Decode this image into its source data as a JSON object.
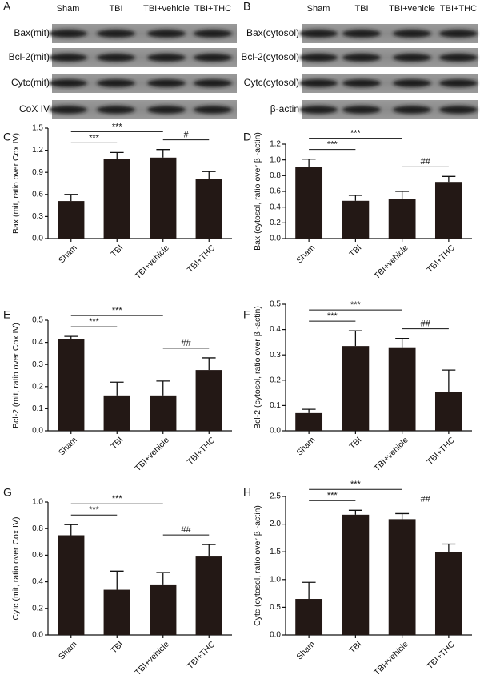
{
  "blots": [
    {
      "label": "A",
      "columns": [
        "Sham",
        "TBI",
        "TBI+vehicle",
        "TBI+THC"
      ],
      "rows": [
        "Bax(mit)",
        "Bcl-2(mit)",
        "Cytc(mit)",
        "CoX IV"
      ]
    },
    {
      "label": "B",
      "columns": [
        "Sham",
        "TBI",
        "TBI+vehicle",
        "TBI+THC"
      ],
      "rows": [
        "Bax(cytosol)",
        "Bcl-2(cytosol)",
        "Cytc(cytosol)",
        "β-actin"
      ]
    }
  ],
  "chart_data": [
    {
      "type": "bar",
      "label": "C",
      "y_label": "Bax (mit, ratio over Cox IV)",
      "categories": [
        "Sham",
        "TBI",
        "TBI+vehicle",
        "TBI+THC"
      ],
      "values": [
        0.51,
        1.08,
        1.1,
        0.81
      ],
      "errors": [
        0.09,
        0.09,
        0.11,
        0.1
      ],
      "color": "#231815",
      "ylim": [
        0,
        1.5
      ],
      "yticks": [
        {
          "value": 0,
          "label": "0.0"
        },
        0.3,
        0.6,
        0.9,
        1.2,
        1.5
      ],
      "annotations": [
        {
          "text": "***",
          "from": 0,
          "to": 1
        },
        {
          "text": "***",
          "from": 0,
          "to": 2
        },
        {
          "text": "#",
          "from": 2,
          "to": 3
        }
      ]
    },
    {
      "type": "bar",
      "label": "D",
      "y_label": "Bax (cytosol, ratio over β -actin)",
      "categories": [
        "Sham",
        "TBI",
        "TBI+vehicle",
        "TBI+THC"
      ],
      "values": [
        0.91,
        0.48,
        0.5,
        0.72
      ],
      "errors": [
        0.1,
        0.07,
        0.1,
        0.07
      ],
      "color": "#231815",
      "ylim": [
        0,
        1.2
      ],
      "yticks": [
        {
          "value": 0,
          "label": "0.0"
        },
        0.2,
        0.4,
        0.6,
        0.8,
        {
          "value": 1,
          "label": "1.0"
        },
        1.2
      ],
      "annotations": [
        {
          "text": "***",
          "from": 0,
          "to": 1
        },
        {
          "text": "***",
          "from": 0,
          "to": 2
        },
        {
          "text": "##",
          "from": 2,
          "to": 3
        }
      ]
    },
    {
      "type": "bar",
      "label": "E",
      "y_label": "Bcl-2 (mit, ratio over Cox IV)",
      "categories": [
        "Sham",
        "TBI",
        "TBI+vehicle",
        "TBI+THC"
      ],
      "values": [
        0.415,
        0.16,
        0.16,
        0.275
      ],
      "errors": [
        0.012,
        0.06,
        0.065,
        0.055
      ],
      "color": "#231815",
      "ylim": [
        0,
        0.5
      ],
      "yticks": [
        {
          "value": 0,
          "label": "0.0"
        },
        0.1,
        0.2,
        0.3,
        0.4,
        0.5
      ],
      "annotations": [
        {
          "text": "***",
          "from": 0,
          "to": 1
        },
        {
          "text": "***",
          "from": 0,
          "to": 2
        },
        {
          "text": "##",
          "from": 2,
          "to": 3
        }
      ]
    },
    {
      "type": "bar",
      "label": "F",
      "y_label": "Bcl-2 (cytosol, ratio over β -actin)",
      "categories": [
        "Sham",
        "TBI",
        "TBI+vehicle",
        "TBI+THC"
      ],
      "values": [
        0.07,
        0.335,
        0.33,
        0.155
      ],
      "errors": [
        0.015,
        0.06,
        0.035,
        0.085
      ],
      "color": "#231815",
      "ylim": [
        0,
        0.5
      ],
      "yticks": [
        {
          "value": 0,
          "label": "0.0"
        },
        0.1,
        0.2,
        0.3,
        0.4,
        0.5
      ],
      "annotations": [
        {
          "text": "***",
          "from": 0,
          "to": 1
        },
        {
          "text": "***",
          "from": 0,
          "to": 2
        },
        {
          "text": "##",
          "from": 2,
          "to": 3
        }
      ]
    },
    {
      "type": "bar",
      "label": "G",
      "y_label": "Cytc (mit, ratio over Cox IV)",
      "categories": [
        "Sham",
        "TBI",
        "TBI+vehicle",
        "TBI+THC"
      ],
      "values": [
        0.75,
        0.34,
        0.38,
        0.59
      ],
      "errors": [
        0.08,
        0.14,
        0.09,
        0.09
      ],
      "color": "#231815",
      "ylim": [
        0,
        1
      ],
      "yticks": [
        {
          "value": 0,
          "label": "0.0"
        },
        0.2,
        0.4,
        0.6,
        0.8,
        {
          "value": 1,
          "label": "1.0"
        }
      ],
      "annotations": [
        {
          "text": "***",
          "from": 0,
          "to": 1
        },
        {
          "text": "***",
          "from": 0,
          "to": 2
        },
        {
          "text": "##",
          "from": 2,
          "to": 3
        }
      ]
    },
    {
      "type": "bar",
      "label": "H",
      "y_label": "Cytc (cytosol, ratio over β -actin)",
      "categories": [
        "Sham",
        "TBI",
        "TBI+vehicle",
        "TBI+THC"
      ],
      "values": [
        0.65,
        2.17,
        2.09,
        1.49
      ],
      "errors": [
        0.3,
        0.08,
        0.1,
        0.15
      ],
      "color": "#231815",
      "ylim": [
        0,
        2.5
      ],
      "yticks": [
        {
          "value": 0,
          "label": "0.0"
        },
        0.5,
        {
          "value": 1,
          "label": "1.0"
        },
        1.5,
        {
          "value": 2,
          "label": "2.0"
        },
        2.5
      ],
      "annotations": [
        {
          "text": "***",
          "from": 0,
          "to": 1
        },
        {
          "text": "***",
          "from": 0,
          "to": 2
        },
        {
          "text": "##",
          "from": 2,
          "to": 3
        }
      ]
    }
  ]
}
